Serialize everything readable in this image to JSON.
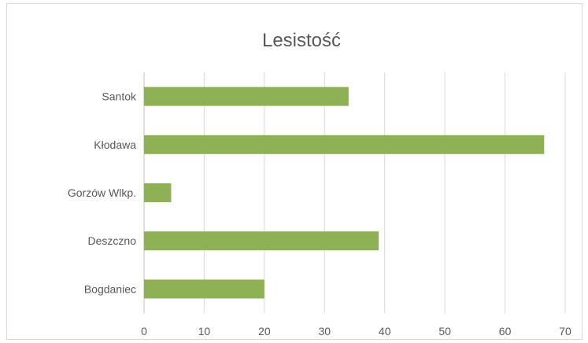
{
  "chart_data": {
    "type": "bar",
    "orientation": "horizontal",
    "title": "Lesistość",
    "categories": [
      "Santok",
      "Kłodawa",
      "Gorzów Wlkp.",
      "Deszczno",
      "Bogdaniec"
    ],
    "values": [
      34,
      66.5,
      4.5,
      39,
      20
    ],
    "xlim": [
      0,
      70
    ],
    "xticks": [
      0,
      10,
      20,
      30,
      40,
      50,
      60,
      70
    ],
    "grid": true,
    "legend": "none",
    "bar_color": "#8db153"
  }
}
